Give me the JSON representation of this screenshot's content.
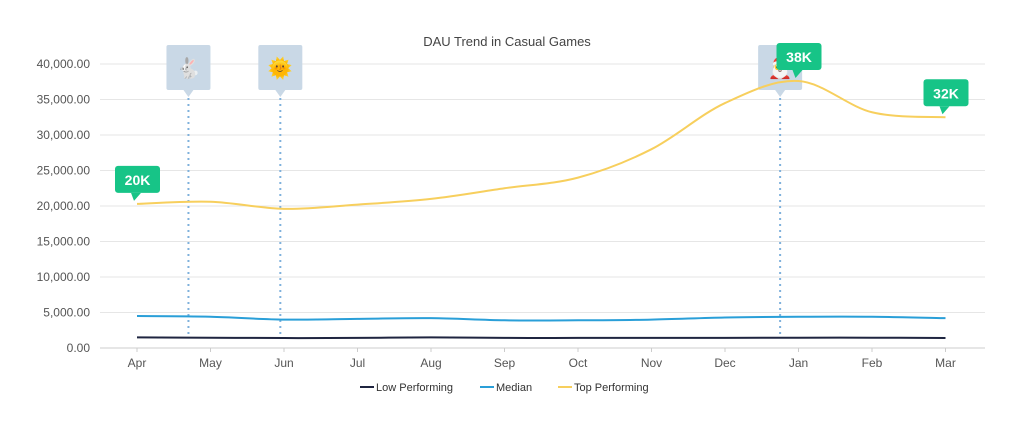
{
  "chart_data": {
    "type": "line",
    "title": "DAU Trend in Casual Games",
    "categories": [
      "Apr",
      "May",
      "Jun",
      "Jul",
      "Aug",
      "Sep",
      "Oct",
      "Nov",
      "Dec",
      "Jan",
      "Feb",
      "Mar"
    ],
    "ylim": [
      0,
      40000
    ],
    "yticks": [
      0,
      5000,
      10000,
      15000,
      20000,
      25000,
      30000,
      35000,
      40000
    ],
    "ytick_labels": [
      "0.00",
      "5,000.00",
      "10,000.00",
      "15,000.00",
      "20,000.00",
      "25,000.00",
      "30,000.00",
      "35,000.00",
      "40,000.00"
    ],
    "grid": true,
    "legend_position": "bottom",
    "series": [
      {
        "name": "Low Performing",
        "color": "#1f2540",
        "values": [
          1500,
          1450,
          1400,
          1420,
          1500,
          1420,
          1420,
          1420,
          1420,
          1450,
          1450,
          1400
        ]
      },
      {
        "name": "Median",
        "color": "#2a9fd8",
        "values": [
          4500,
          4400,
          4000,
          4100,
          4200,
          3900,
          3900,
          4000,
          4300,
          4400,
          4400,
          4200
        ]
      },
      {
        "name": "Top Performing",
        "color": "#f7cf5d",
        "values": [
          20300,
          20600,
          19600,
          20200,
          21000,
          22500,
          24000,
          28000,
          34500,
          37600,
          33200,
          32500
        ]
      }
    ],
    "callouts": [
      {
        "text": "20K",
        "series": "Top Performing",
        "category": "Apr",
        "value": 20300
      },
      {
        "text": "38K",
        "series": "Top Performing",
        "category": "Jan",
        "value": 37600
      },
      {
        "text": "32K",
        "series": "Top Performing",
        "category": "Mar",
        "value": 32500
      }
    ],
    "callout_color": "#17c487",
    "event_markers": [
      {
        "name": "rabbit-icon",
        "glyph": "🐇",
        "x_month_position": 0.7
      },
      {
        "name": "sun-icon",
        "glyph": "🌞",
        "x_month_position": 1.95
      },
      {
        "name": "santa-icon",
        "glyph": "🎅",
        "x_month_position": 8.75
      }
    ],
    "marker_line_color": "#7fb1dc",
    "marker_box_color": "#c9d8e6"
  }
}
